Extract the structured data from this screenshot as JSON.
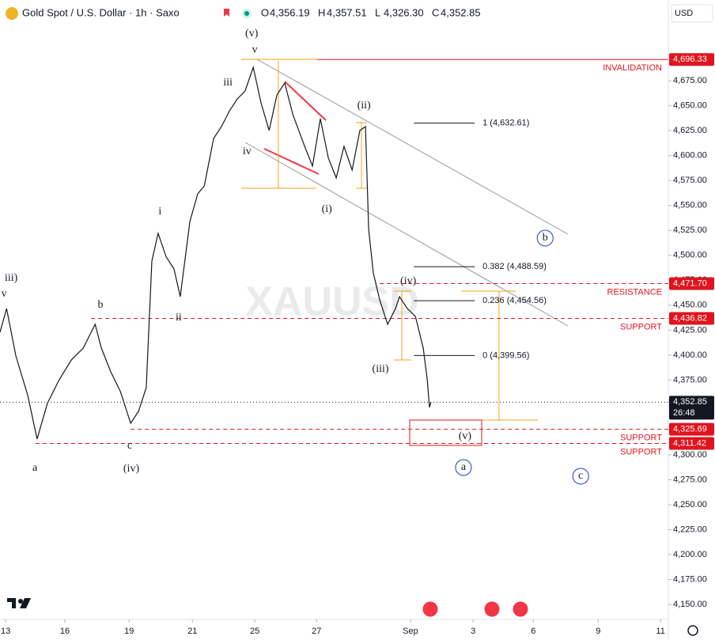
{
  "chart_data": {
    "type": "line",
    "title": "Gold Spot / U.S. Dollar · 1h · Saxo",
    "ohlc": [
      {
        "key": "O",
        "value": "4,356.19"
      },
      {
        "key": "H",
        "value": "4,357.51"
      },
      {
        "key": "L",
        "value": "4,326.30"
      },
      {
        "key": "C",
        "value": "4,352.85"
      }
    ],
    "currency": "USD",
    "watermark": "XAUUSD",
    "x": [
      -0.18,
      0.03,
      0.33,
      0.71,
      1.01,
      1.34,
      1.72,
      2.11,
      2.49,
      2.87,
      3.07,
      3.37,
      3.68,
      4.01,
      4.26,
      4.51,
      4.69,
      4.89,
      5.15,
      5.4,
      5.6,
      5.91,
      6.16,
      6.37,
      6.67,
      6.92,
      7.18,
      7.43,
      7.68,
      7.94,
      8.19,
      8.45,
      8.7,
      8.95,
      9.21,
      9.59,
      9.84,
      10.09,
      10.35,
      10.6,
      10.85,
      11.11,
      11.36,
      11.54,
      11.64,
      11.79,
      12.0,
      12.25,
      12.5,
      12.63,
      12.88,
      13.14,
      13.39,
      13.52,
      13.59,
      13.64
    ],
    "series": [
      {
        "color": "#131722",
        "values": [
          4422.9,
          4446.7,
          4399.1,
          4359.5,
          4315.9,
          4351.6,
          4375.4,
          4395.2,
          4407.1,
          4430.9,
          4407.1,
          4383.3,
          4363.5,
          4331.7,
          4343.6,
          4367.4,
          4494.3,
          4522.1,
          4498.3,
          4486.4,
          4458.6,
          4534.0,
          4561.7,
          4569.6,
          4617.2,
          4629.1,
          4645.0,
          4656.9,
          4664.8,
          4688.6,
          4652.9,
          4625.2,
          4660.8,
          4672.7,
          4641.0,
          4609.3,
          4589.5,
          4637.0,
          4597.4,
          4577.6,
          4609.3,
          4585.5,
          4625.2,
          4629.1,
          4526.0,
          4482.4,
          4454.7,
          4430.9,
          4446.7,
          4458.6,
          4446.7,
          4438.8,
          4407.1,
          4375.4,
          4347.6,
          4352.85
        ]
      }
    ],
    "last_price": {
      "value": 4352.85,
      "label": "4,352.85",
      "countdown": "26:48"
    },
    "levels": [
      {
        "label": "INVALIDATION",
        "value": 4696.33,
        "price_label": "4,696.33",
        "style": "solid",
        "from": 9.98
      },
      {
        "label": "RESISTANCE",
        "value": 4471.7,
        "price_label": "4,471.70",
        "style": "dashed",
        "from": 12.0
      },
      {
        "label": "SUPPORT",
        "value": 4436.82,
        "price_label": "4,436.82",
        "style": "dashed",
        "from": 2.74
      },
      {
        "label": "SUPPORT",
        "value": 4325.69,
        "price_label": "4,325.69",
        "style": "dashed",
        "from": 4.01
      },
      {
        "label": "SUPPORT",
        "value": 4311.42,
        "price_label": "4,311.42",
        "style": "dashed",
        "from": 0.96
      }
    ],
    "fib": [
      {
        "label": "1 (4,632.61)",
        "value": 4632.61
      },
      {
        "label": "0.382 (4,488.59)",
        "value": 4488.59
      },
      {
        "label": "0.236 (4,454.56)",
        "value": 4454.56
      },
      {
        "label": "0 (4,399.56)",
        "value": 4399.56
      }
    ],
    "fib_range": [
      13.09,
      15.04
    ],
    "waves": [
      {
        "text": "(v)",
        "x": 7.89,
        "y": 4721.9,
        "color": "#e0141e",
        "circled": false
      },
      {
        "text": "v",
        "x": 7.99,
        "y": 4706.0,
        "color": "#131722",
        "circled": false
      },
      {
        "text": "iii",
        "x": 7.13,
        "y": 4672.7,
        "color": "#131722",
        "circled": false
      },
      {
        "text": "iv",
        "x": 7.74,
        "y": 4603.7,
        "color": "#131722",
        "circled": false
      },
      {
        "text": "(ii)",
        "x": 11.49,
        "y": 4649.7,
        "color": "#e0141e",
        "circled": false
      },
      {
        "text": "(i)",
        "x": 10.3,
        "y": 4545.9,
        "color": "#e0141e",
        "circled": false
      },
      {
        "text": "i",
        "x": 4.95,
        "y": 4543.5,
        "color": "#131722",
        "circled": false
      },
      {
        "text": "ii",
        "x": 5.55,
        "y": 4437.2,
        "color": "#131722",
        "circled": false
      },
      {
        "text": "b",
        "x": 3.04,
        "y": 4449.9,
        "color": "#131722",
        "circled": false
      },
      {
        "text": "v",
        "x": -0.05,
        "y": 4461.0,
        "color": "#131722",
        "circled": false
      },
      {
        "text": "iii)",
        "x": 0.18,
        "y": 4476.9,
        "color": "#e0141e",
        "circled": false
      },
      {
        "text": "a",
        "x": 0.94,
        "y": 4286.5,
        "color": "#131722",
        "circled": false
      },
      {
        "text": "c",
        "x": 3.98,
        "y": 4308.7,
        "color": "#131722",
        "circled": false
      },
      {
        "text": "(iv)",
        "x": 4.03,
        "y": 4285.7,
        "color": "#e0141e",
        "circled": false
      },
      {
        "text": "(iv)",
        "x": 12.91,
        "y": 4473.7,
        "color": "#e0141e",
        "circled": false
      },
      {
        "text": "(iii)",
        "x": 12.02,
        "y": 4385.7,
        "color": "#e0141e",
        "circled": false
      },
      {
        "text": "(v)",
        "x": 14.73,
        "y": 4318.3,
        "color": "#e0141e",
        "circled": false
      },
      {
        "text": "a",
        "x": 14.68,
        "y": 4287.3,
        "color": "#1e3bd6",
        "circled": true
      },
      {
        "text": "b",
        "x": 17.3,
        "y": 4517.3,
        "color": "#1e3bd6",
        "circled": true
      },
      {
        "text": "c",
        "x": 18.44,
        "y": 4278.6,
        "color": "#1e3bd6",
        "circled": true
      }
    ],
    "xlim": [
      -0.18,
      21.25
    ],
    "ylim": [
      4135,
      4756
    ],
    "xticks": [
      {
        "value": 0,
        "label": "13"
      },
      {
        "value": 1.9,
        "label": "16"
      },
      {
        "value": 3.96,
        "label": "19"
      },
      {
        "value": 5.99,
        "label": "21"
      },
      {
        "value": 7.99,
        "label": "25"
      },
      {
        "value": 9.97,
        "label": "27"
      },
      {
        "value": 12.98,
        "label": "Sep"
      },
      {
        "value": 14.99,
        "label": "3"
      },
      {
        "value": 16.92,
        "label": "6"
      },
      {
        "value": 19.0,
        "label": "9"
      },
      {
        "value": 21.0,
        "label": "11"
      }
    ],
    "yticks": [
      {
        "value": 4150,
        "label": "4,150.00"
      },
      {
        "value": 4175,
        "label": "4,175.00"
      },
      {
        "value": 4200,
        "label": "4,200.00"
      },
      {
        "value": 4225,
        "label": "4,225.00"
      },
      {
        "value": 4250,
        "label": "4,250.00"
      },
      {
        "value": 4275,
        "label": "4,275.00"
      },
      {
        "value": 4300,
        "label": "4,300.00"
      },
      {
        "value": 4325,
        "label": "4,325.00"
      },
      {
        "value": 4350,
        "label": "4,350.00"
      },
      {
        "value": 4375,
        "label": "4,375.00"
      },
      {
        "value": 4400,
        "label": "4,400.00"
      },
      {
        "value": 4425,
        "label": "4,425.00"
      },
      {
        "value": 4450,
        "label": "4,450.00"
      },
      {
        "value": 4475,
        "label": "4,475.00"
      },
      {
        "value": 4500,
        "label": "4,500.00"
      },
      {
        "value": 4525,
        "label": "4,525.00"
      },
      {
        "value": 4550,
        "label": "4,550.00"
      },
      {
        "value": 4575,
        "label": "4,575.00"
      },
      {
        "value": 4600,
        "label": "4,600.00"
      },
      {
        "value": 4625,
        "label": "4,625.00"
      },
      {
        "value": 4650,
        "label": "4,650.00"
      },
      {
        "value": 4675,
        "label": "4,675.00"
      }
    ]
  }
}
